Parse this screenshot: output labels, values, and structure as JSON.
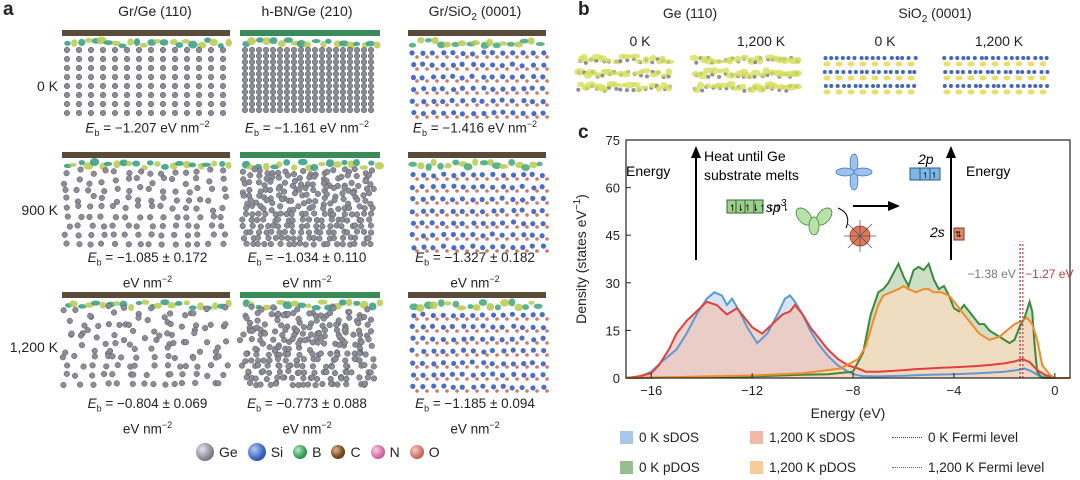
{
  "panel_a": {
    "letter": "a",
    "columns": [
      {
        "pre": "Gr/Ge (110)",
        "sub": ""
      },
      {
        "pre": "h-BN/Ge (210)",
        "sub": ""
      },
      {
        "pre": "Gr/SiO",
        "sub": "2",
        "post": " (0001)"
      }
    ],
    "rows": [
      "0 K",
      "900 K",
      "1,200 K"
    ],
    "eb_label": "E",
    "eb_sub": "b",
    "energies": [
      [
        "= −1.207 eV nm",
        "= −1.161 eV nm",
        "= −1.416 eV nm"
      ],
      [
        "= −1.085 ± 0.172",
        "= −1.034 ± 0.110",
        "= −1.327 ± 0.182"
      ],
      [
        "= −0.804 ± 0.069",
        "= −0.773 ± 0.088",
        "= −1.185 ± 0.094"
      ]
    ],
    "unit_line": "eV nm",
    "exp": "−2",
    "legend": [
      {
        "label": "Ge",
        "color": "#8d8d99"
      },
      {
        "label": "Si",
        "color": "#3f66c4"
      },
      {
        "label": "B",
        "color": "#3aa05a"
      },
      {
        "label": "C",
        "color": "#7a4a1c"
      },
      {
        "label": "N",
        "color": "#d56fa8"
      },
      {
        "label": "O",
        "color": "#d4756a"
      }
    ]
  },
  "panel_b": {
    "letter": "b",
    "groups": [
      {
        "pre": "Ge (110)",
        "sub": "",
        "post": ""
      },
      {
        "pre": "SiO",
        "sub": "2",
        "post": " (0001)"
      }
    ],
    "temps": [
      "0 K",
      "1,200 K",
      "0 K",
      "1,200 K"
    ]
  },
  "panel_c": {
    "letter": "c",
    "inset": {
      "energy_left": "Energy",
      "energy_right": "Energy",
      "heat_line1": "Heat until Ge",
      "heat_line2": "substrate melts",
      "sp3_pre": "sp",
      "sp3_sup": "3",
      "orb_2p": "2p",
      "orb_2s": "2s"
    },
    "fermi_labels": {
      "zero": "−1.38 eV",
      "high": "−1.27 eV"
    },
    "legend": [
      {
        "label": "0 K sDOS",
        "kind": "box",
        "color": "#a9c7e8"
      },
      {
        "label": "1,200 K sDOS",
        "kind": "box",
        "color": "#f2b9a8"
      },
      {
        "label": "0 K Fermi level",
        "kind": "line",
        "color": "#4a4a5a"
      },
      {
        "label": "0 K pDOS",
        "kind": "box",
        "color": "#95bf8f"
      },
      {
        "label": "1,200 K pDOS",
        "kind": "box",
        "color": "#f7cc9a"
      },
      {
        "label": "1,200 K Fermi level",
        "kind": "line",
        "color": "#d0343f"
      }
    ]
  },
  "chart_data": {
    "type": "area",
    "title": "",
    "xlabel": "Energy (eV)",
    "ylabel": "Density (states eV",
    "ylabel_sup": "−1",
    "xlim": [
      -17,
      0.6
    ],
    "ylim": [
      0,
      75
    ],
    "xticks": [
      -16,
      -12,
      -8,
      -4,
      0
    ],
    "yticks": [
      0,
      15,
      30,
      45,
      60,
      75
    ],
    "series": [
      {
        "name": "0 K sDOS",
        "fill": "#cbdaf0",
        "stroke": "#5b9bd5",
        "x": [
          -17,
          -16.4,
          -16,
          -15.6,
          -15,
          -14.6,
          -14.2,
          -13.8,
          -13.5,
          -13.2,
          -13,
          -12.8,
          -12.5,
          -12.2,
          -11.8,
          -11.4,
          -11,
          -10.7,
          -10.5,
          -10.3,
          -10,
          -9.7,
          -9.4,
          -9,
          -8.6,
          -8.2,
          -7.9,
          -7.6,
          -7,
          -6,
          -5,
          -4,
          -3,
          -2,
          -1.5,
          -1.2,
          -0.9,
          -0.6,
          0,
          0.6
        ],
        "y": [
          0,
          0.5,
          2,
          5,
          9,
          14,
          20,
          25,
          27,
          26,
          23,
          25,
          21,
          16,
          11,
          14,
          20,
          25,
          26,
          24,
          20,
          15,
          11,
          7,
          4,
          2,
          1,
          0.6,
          0.5,
          0.7,
          1,
          1.2,
          1.5,
          2,
          2.5,
          3,
          2,
          0.5,
          0,
          0
        ]
      },
      {
        "name": "0 K pDOS",
        "fill": "#bcd6b4",
        "stroke": "#3a8a3a",
        "x": [
          -17,
          -12,
          -10,
          -9,
          -8,
          -7.6,
          -7.3,
          -7,
          -6.8,
          -6.6,
          -6.4,
          -6.2,
          -6,
          -5.8,
          -5.6,
          -5.4,
          -5.2,
          -5,
          -4.8,
          -4.6,
          -4.4,
          -4.2,
          -4,
          -3.8,
          -3.6,
          -3.4,
          -3.2,
          -3,
          -2.8,
          -2.6,
          -2.4,
          -2.2,
          -2,
          -1.8,
          -1.6,
          -1.4,
          -1.2,
          -1,
          -0.9,
          -0.8,
          -0.7,
          -0.5,
          0,
          0.6
        ],
        "y": [
          0,
          0.5,
          1,
          1.2,
          2,
          8,
          20,
          27,
          28,
          30,
          33,
          36,
          32,
          29,
          34,
          35,
          34,
          36,
          31,
          28,
          29,
          26,
          22,
          21,
          23,
          21,
          19,
          17,
          17,
          15,
          14,
          13,
          12,
          11,
          12,
          16,
          19,
          24,
          21,
          10,
          2,
          0,
          0,
          0
        ]
      },
      {
        "name": "1,200 K sDOS",
        "fill": "#f1c6ba",
        "stroke": "#e0413a",
        "x": [
          -17,
          -16.5,
          -16,
          -15.7,
          -15.3,
          -15,
          -14.6,
          -14.2,
          -13.8,
          -13.4,
          -13,
          -12.6,
          -12.3,
          -12,
          -11.6,
          -11.2,
          -10.8,
          -10.5,
          -10.3,
          -10,
          -9.7,
          -9.3,
          -9,
          -8.6,
          -8.2,
          -7.8,
          -7.5,
          -7,
          -6.5,
          -6,
          -5.5,
          -5,
          -4.5,
          -4,
          -3.5,
          -3,
          -2.5,
          -2,
          -1.6,
          -1.3,
          -1,
          -0.7,
          -0.4,
          0,
          0.6
        ],
        "y": [
          0,
          0.5,
          1.5,
          4,
          9,
          14,
          18,
          21,
          24,
          23,
          20,
          22,
          19,
          16,
          14,
          17,
          20,
          21,
          23,
          20,
          16,
          12,
          9,
          6,
          4,
          3,
          2,
          2,
          2.2,
          2.5,
          2.8,
          3,
          3.2,
          3.4,
          3.6,
          3.8,
          4.2,
          4.6,
          5.2,
          6,
          5,
          2.5,
          1,
          0,
          0
        ]
      },
      {
        "name": "1,200 K pDOS",
        "fill": "#f9dcc0",
        "stroke": "#f28a2a",
        "x": [
          -17,
          -12,
          -10,
          -8.5,
          -7.8,
          -7.5,
          -7.2,
          -7,
          -6.8,
          -6.5,
          -6.2,
          -6,
          -5.8,
          -5.5,
          -5.2,
          -5,
          -4.8,
          -4.5,
          -4.2,
          -4,
          -3.7,
          -3.4,
          -3,
          -2.6,
          -2.2,
          -1.9,
          -1.6,
          -1.3,
          -1.1,
          -0.9,
          -0.7,
          -0.5,
          -0.2,
          0,
          0.6
        ],
        "y": [
          0,
          0.8,
          1.5,
          3,
          6,
          10,
          18,
          23,
          26,
          27,
          28,
          29,
          28,
          27,
          28,
          28,
          27,
          27,
          26,
          24,
          21,
          18,
          14,
          12,
          13,
          15,
          17,
          18,
          19,
          17,
          12,
          4,
          1,
          0,
          0
        ]
      }
    ],
    "fermi_levels": [
      {
        "name": "0 K Fermi level",
        "x": -1.38,
        "color": "#4a4a5a"
      },
      {
        "name": "1,200 K Fermi level",
        "x": -1.27,
        "color": "#d0343f"
      }
    ]
  }
}
